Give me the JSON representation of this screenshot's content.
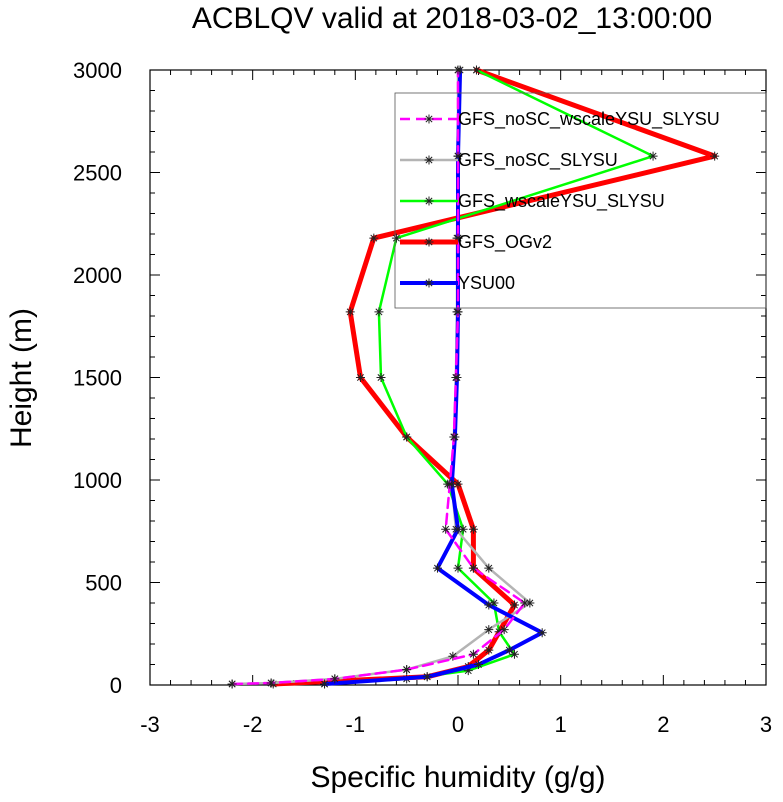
{
  "chart_data": {
    "type": "line",
    "title": "ACBLQV valid at 2018-03-02_13:00:00",
    "xlabel": "Specific humidity (g/g)",
    "ylabel": "Height (m)",
    "xlim": [
      -3,
      3
    ],
    "ylim": [
      0,
      3000
    ],
    "x_ticks": [
      -3,
      -2,
      -1,
      0,
      1,
      2,
      3
    ],
    "x_tick_labels": [
      "-3",
      "-2",
      "-1",
      "0",
      "1",
      "2",
      "3"
    ],
    "y_ticks": [
      0,
      500,
      1000,
      1500,
      2000,
      2500,
      3000
    ],
    "y_tick_labels": [
      "0",
      "500",
      "1000",
      "1500",
      "2000",
      "2500",
      "3000"
    ],
    "grid": false,
    "legend_position": "top-right",
    "marker": "asterisk",
    "series": [
      {
        "name": "GFS_noSC_wscaleYSU_SLYSU",
        "color": "#ff00ff",
        "dash": "dashed",
        "width": 2.5,
        "points": [
          [
            -2.2,
            5
          ],
          [
            -1.82,
            10
          ],
          [
            -1.2,
            30
          ],
          [
            -0.5,
            75
          ],
          [
            0.15,
            150
          ],
          [
            0.45,
            270
          ],
          [
            0.65,
            400
          ],
          [
            0.15,
            570
          ],
          [
            -0.12,
            760
          ],
          [
            -0.08,
            980
          ],
          [
            -0.04,
            1210
          ],
          [
            -0.02,
            1500
          ],
          [
            0,
            1820
          ],
          [
            0,
            2180
          ],
          [
            0,
            2580
          ],
          [
            0,
            3000
          ]
        ]
      },
      {
        "name": "GFS_noSC_SLYSU",
        "color": "#b4b4b4",
        "dash": "solid",
        "width": 2.5,
        "points": [
          [
            -2.2,
            5
          ],
          [
            -1.82,
            10
          ],
          [
            -1.2,
            30
          ],
          [
            -0.5,
            75
          ],
          [
            -0.05,
            140
          ],
          [
            0.3,
            270
          ],
          [
            0.7,
            400
          ],
          [
            0.3,
            570
          ],
          [
            -0.02,
            760
          ],
          [
            -0.06,
            980
          ],
          [
            -0.04,
            1210
          ],
          [
            -0.02,
            1500
          ],
          [
            -0.01,
            1820
          ],
          [
            -0.01,
            2180
          ],
          [
            0,
            2580
          ],
          [
            0,
            3000
          ]
        ]
      },
      {
        "name": "GFS_wscaleYSU_SLYSU",
        "color": "#00ff00",
        "dash": "solid",
        "width": 2.5,
        "points": [
          [
            -1.3,
            5
          ],
          [
            -0.5,
            30
          ],
          [
            0.1,
            70
          ],
          [
            0.55,
            150
          ],
          [
            0.4,
            260
          ],
          [
            0.35,
            400
          ],
          [
            0.0,
            570
          ],
          [
            0.05,
            760
          ],
          [
            -0.1,
            980
          ],
          [
            -0.5,
            1210
          ],
          [
            -0.75,
            1500
          ],
          [
            -0.77,
            1820
          ],
          [
            -0.6,
            2180
          ],
          [
            1.9,
            2580
          ],
          [
            0.18,
            3000
          ]
        ]
      },
      {
        "name": "GFS_OGv2",
        "color": "#ff0000",
        "dash": "solid",
        "width": 5,
        "points": [
          [
            -1.8,
            5
          ],
          [
            -0.3,
            40
          ],
          [
            0.1,
            90
          ],
          [
            0.3,
            170
          ],
          [
            0.55,
            390
          ],
          [
            0.15,
            570
          ],
          [
            0.15,
            760
          ],
          [
            0.0,
            980
          ],
          [
            -0.5,
            1210
          ],
          [
            -0.95,
            1500
          ],
          [
            -1.05,
            1820
          ],
          [
            -0.82,
            2180
          ],
          [
            2.5,
            2580
          ],
          [
            0.18,
            3000
          ]
        ]
      },
      {
        "name": "YSU00",
        "color": "#0000ff",
        "dash": "solid",
        "width": 4,
        "points": [
          [
            -1.3,
            5
          ],
          [
            -0.3,
            40
          ],
          [
            0.2,
            100
          ],
          [
            0.5,
            170
          ],
          [
            0.82,
            255
          ],
          [
            0.3,
            390
          ],
          [
            -0.2,
            570
          ],
          [
            0.0,
            760
          ],
          [
            -0.06,
            980
          ],
          [
            -0.03,
            1210
          ],
          [
            -0.01,
            1500
          ],
          [
            0.0,
            1820
          ],
          [
            0.0,
            2180
          ],
          [
            0.0,
            2580
          ],
          [
            0.02,
            3000
          ]
        ]
      }
    ]
  }
}
